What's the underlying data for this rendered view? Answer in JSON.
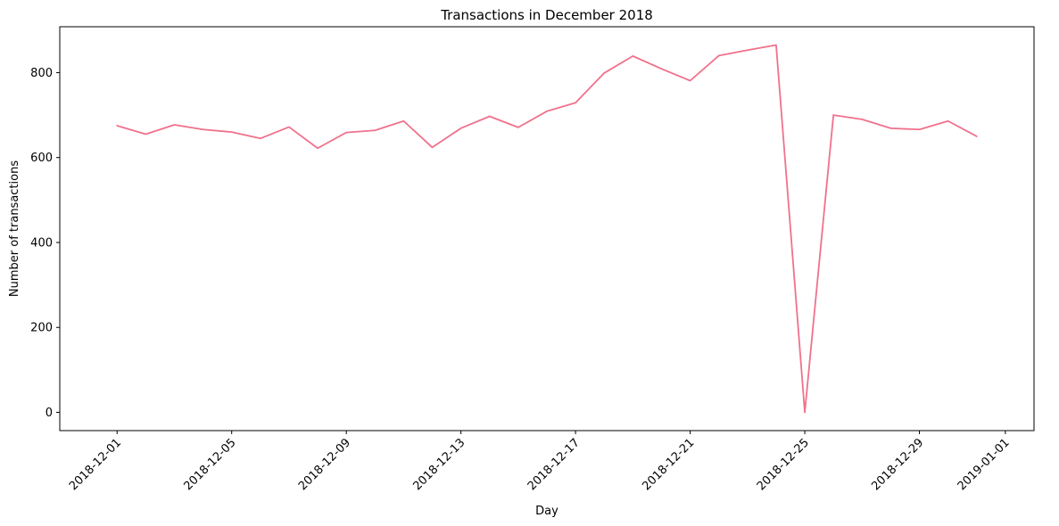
{
  "chart_data": {
    "type": "line",
    "title": "Transactions in December 2018",
    "xlabel": "Day",
    "ylabel": "Number of transactions",
    "x_tick_labels": [
      "2018-12-01",
      "2018-12-05",
      "2018-12-09",
      "2018-12-13",
      "2018-12-17",
      "2018-12-21",
      "2018-12-25",
      "2018-12-29",
      "2019-01-01"
    ],
    "y_tick_labels": [
      "0",
      "200",
      "400",
      "600",
      "800"
    ],
    "x_range": [
      "2018-11-29",
      "2019-01-02"
    ],
    "ylim": [
      -43,
      908
    ],
    "grid": false,
    "color": "#f0718c",
    "series": [
      {
        "x": [
          "2018-12-01",
          "2018-12-02",
          "2018-12-03",
          "2018-12-04",
          "2018-12-05",
          "2018-12-06",
          "2018-12-07",
          "2018-12-08",
          "2018-12-09",
          "2018-12-10",
          "2018-12-11",
          "2018-12-12",
          "2018-12-13",
          "2018-12-14",
          "2018-12-15",
          "2018-12-16",
          "2018-12-17",
          "2018-12-18",
          "2018-12-19",
          "2018-12-20",
          "2018-12-21",
          "2018-12-22",
          "2018-12-23",
          "2018-12-24",
          "2018-12-25",
          "2018-12-26",
          "2018-12-27",
          "2018-12-28",
          "2018-12-29",
          "2018-12-30",
          "2018-12-31"
        ],
        "values": [
          675,
          655,
          677,
          666,
          660,
          645,
          672,
          622,
          659,
          664,
          686,
          624,
          669,
          697,
          671,
          709,
          729,
          799,
          839,
          809,
          781,
          840,
          853,
          865,
          0,
          700,
          690,
          669,
          666,
          686,
          650
        ]
      }
    ]
  }
}
